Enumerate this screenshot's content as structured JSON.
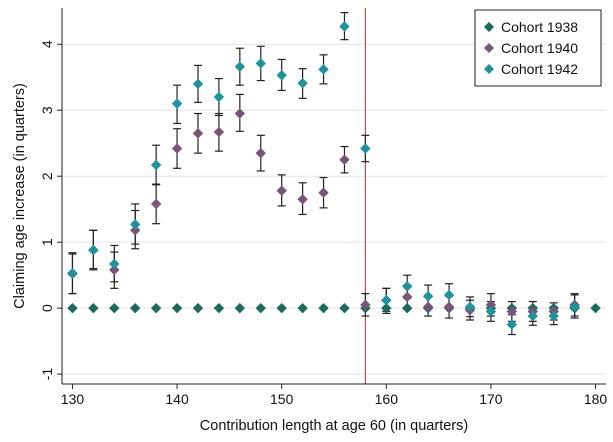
{
  "chart_data": {
    "type": "scatter",
    "xlabel": "Contribution length at age 60 (in quarters)",
    "ylabel": "Claiming age increase (in quarters)",
    "xlim": [
      129,
      181
    ],
    "ylim": [
      -1.15,
      4.55
    ],
    "x_ticks": [
      130,
      140,
      150,
      160,
      170,
      180
    ],
    "x_tick_labels": [
      "130",
      "140",
      "150",
      "160",
      "170",
      "180"
    ],
    "y_ticks": [
      -1,
      0,
      1,
      2,
      3,
      4
    ],
    "y_tick_labels": [
      "-1",
      "0",
      "1",
      "2",
      "3",
      "4"
    ],
    "grid": true,
    "legend_position": "top-right",
    "vertical_reference_line": {
      "x": 158,
      "color": "#a05a5a"
    },
    "error_bars": true,
    "series": [
      {
        "name": "Cohort 1938",
        "color": "#1a6b5a",
        "points": [
          {
            "x": 130,
            "y": 0,
            "lo": 0,
            "hi": 0
          },
          {
            "x": 132,
            "y": 0,
            "lo": 0,
            "hi": 0
          },
          {
            "x": 134,
            "y": 0,
            "lo": 0,
            "hi": 0
          },
          {
            "x": 136,
            "y": 0,
            "lo": 0,
            "hi": 0
          },
          {
            "x": 138,
            "y": 0,
            "lo": 0,
            "hi": 0
          },
          {
            "x": 140,
            "y": 0,
            "lo": 0,
            "hi": 0
          },
          {
            "x": 142,
            "y": 0,
            "lo": 0,
            "hi": 0
          },
          {
            "x": 144,
            "y": 0,
            "lo": 0,
            "hi": 0
          },
          {
            "x": 146,
            "y": 0,
            "lo": 0,
            "hi": 0
          },
          {
            "x": 148,
            "y": 0,
            "lo": 0,
            "hi": 0
          },
          {
            "x": 150,
            "y": 0,
            "lo": 0,
            "hi": 0
          },
          {
            "x": 152,
            "y": 0,
            "lo": 0,
            "hi": 0
          },
          {
            "x": 154,
            "y": 0,
            "lo": 0,
            "hi": 0
          },
          {
            "x": 156,
            "y": 0,
            "lo": 0,
            "hi": 0
          },
          {
            "x": 158,
            "y": 0,
            "lo": 0,
            "hi": 0
          },
          {
            "x": 160,
            "y": 0,
            "lo": 0,
            "hi": 0
          },
          {
            "x": 162,
            "y": 0,
            "lo": 0,
            "hi": 0
          },
          {
            "x": 164,
            "y": 0,
            "lo": 0,
            "hi": 0
          },
          {
            "x": 166,
            "y": 0,
            "lo": 0,
            "hi": 0
          },
          {
            "x": 168,
            "y": 0,
            "lo": 0,
            "hi": 0
          },
          {
            "x": 170,
            "y": 0,
            "lo": 0,
            "hi": 0
          },
          {
            "x": 172,
            "y": 0,
            "lo": 0,
            "hi": 0
          },
          {
            "x": 174,
            "y": 0,
            "lo": 0,
            "hi": 0
          },
          {
            "x": 176,
            "y": 0,
            "lo": 0,
            "hi": 0
          },
          {
            "x": 178,
            "y": 0,
            "lo": 0,
            "hi": 0
          },
          {
            "x": 180,
            "y": 0,
            "lo": 0,
            "hi": 0
          }
        ]
      },
      {
        "name": "Cohort 1940",
        "color": "#7a5478",
        "points": [
          {
            "x": 130,
            "y": 0.52,
            "lo": 0.22,
            "hi": 0.82
          },
          {
            "x": 132,
            "y": 0.88,
            "lo": 0.58,
            "hi": 1.18
          },
          {
            "x": 134,
            "y": 0.58,
            "lo": 0.3,
            "hi": 0.85
          },
          {
            "x": 136,
            "y": 1.18,
            "lo": 0.9,
            "hi": 1.48
          },
          {
            "x": 138,
            "y": 1.58,
            "lo": 1.28,
            "hi": 1.88
          },
          {
            "x": 140,
            "y": 2.42,
            "lo": 2.12,
            "hi": 2.72
          },
          {
            "x": 142,
            "y": 2.65,
            "lo": 2.35,
            "hi": 2.95
          },
          {
            "x": 144,
            "y": 2.67,
            "lo": 2.38,
            "hi": 2.95
          },
          {
            "x": 146,
            "y": 2.95,
            "lo": 2.68,
            "hi": 3.24
          },
          {
            "x": 148,
            "y": 2.35,
            "lo": 2.08,
            "hi": 2.62
          },
          {
            "x": 150,
            "y": 1.78,
            "lo": 1.55,
            "hi": 2.02
          },
          {
            "x": 152,
            "y": 1.65,
            "lo": 1.42,
            "hi": 1.9
          },
          {
            "x": 154,
            "y": 1.75,
            "lo": 1.52,
            "hi": 1.98
          },
          {
            "x": 156,
            "y": 2.25,
            "lo": 2.05,
            "hi": 2.45
          },
          {
            "x": 158,
            "y": 0.05,
            "lo": -0.12,
            "hi": 0.22
          },
          {
            "x": 160,
            "y": 0.12,
            "lo": -0.08,
            "hi": 0.3
          },
          {
            "x": 162,
            "y": 0.17,
            "lo": -0.02,
            "hi": 0.35
          },
          {
            "x": 164,
            "y": 0.02,
            "lo": -0.12,
            "hi": 0.18
          },
          {
            "x": 166,
            "y": 0.02,
            "lo": -0.15,
            "hi": 0.18
          },
          {
            "x": 168,
            "y": -0.03,
            "lo": -0.18,
            "hi": 0.12
          },
          {
            "x": 170,
            "y": 0.05,
            "lo": -0.12,
            "hi": 0.22
          },
          {
            "x": 172,
            "y": -0.05,
            "lo": -0.2,
            "hi": 0.1
          },
          {
            "x": 174,
            "y": -0.05,
            "lo": -0.2,
            "hi": 0.1
          },
          {
            "x": 176,
            "y": -0.05,
            "lo": -0.18,
            "hi": 0.08
          },
          {
            "x": 178,
            "y": 0.05,
            "lo": -0.12,
            "hi": 0.22
          }
        ]
      },
      {
        "name": "Cohort 1942",
        "color": "#1e93a0",
        "points": [
          {
            "x": 130,
            "y": 0.53,
            "lo": 0.22,
            "hi": 0.84
          },
          {
            "x": 132,
            "y": 0.88,
            "lo": 0.6,
            "hi": 1.18
          },
          {
            "x": 134,
            "y": 0.67,
            "lo": 0.4,
            "hi": 0.95
          },
          {
            "x": 136,
            "y": 1.27,
            "lo": 0.97,
            "hi": 1.58
          },
          {
            "x": 138,
            "y": 2.17,
            "lo": 1.87,
            "hi": 2.47
          },
          {
            "x": 140,
            "y": 3.1,
            "lo": 2.8,
            "hi": 3.38
          },
          {
            "x": 142,
            "y": 3.4,
            "lo": 3.12,
            "hi": 3.68
          },
          {
            "x": 144,
            "y": 3.2,
            "lo": 2.92,
            "hi": 3.48
          },
          {
            "x": 146,
            "y": 3.66,
            "lo": 3.38,
            "hi": 3.94
          },
          {
            "x": 148,
            "y": 3.71,
            "lo": 3.45,
            "hi": 3.97
          },
          {
            "x": 150,
            "y": 3.53,
            "lo": 3.3,
            "hi": 3.77
          },
          {
            "x": 152,
            "y": 3.41,
            "lo": 3.18,
            "hi": 3.63
          },
          {
            "x": 154,
            "y": 3.62,
            "lo": 3.4,
            "hi": 3.84
          },
          {
            "x": 156,
            "y": 4.27,
            "lo": 4.07,
            "hi": 4.48
          },
          {
            "x": 158,
            "y": 2.42,
            "lo": 2.22,
            "hi": 2.62
          },
          {
            "x": 160,
            "y": 0.12,
            "lo": -0.05,
            "hi": 0.3
          },
          {
            "x": 162,
            "y": 0.33,
            "lo": 0.15,
            "hi": 0.5
          },
          {
            "x": 164,
            "y": 0.18,
            "lo": 0.02,
            "hi": 0.35
          },
          {
            "x": 166,
            "y": 0.2,
            "lo": 0.03,
            "hi": 0.37
          },
          {
            "x": 168,
            "y": 0.02,
            "lo": -0.13,
            "hi": 0.17
          },
          {
            "x": 170,
            "y": -0.05,
            "lo": -0.2,
            "hi": 0.1
          },
          {
            "x": 172,
            "y": -0.25,
            "lo": -0.4,
            "hi": -0.1
          },
          {
            "x": 174,
            "y": -0.12,
            "lo": -0.26,
            "hi": 0.02
          },
          {
            "x": 176,
            "y": -0.12,
            "lo": -0.25,
            "hi": 0.02
          },
          {
            "x": 178,
            "y": 0.02,
            "lo": -0.15,
            "hi": 0.2
          }
        ]
      }
    ]
  }
}
